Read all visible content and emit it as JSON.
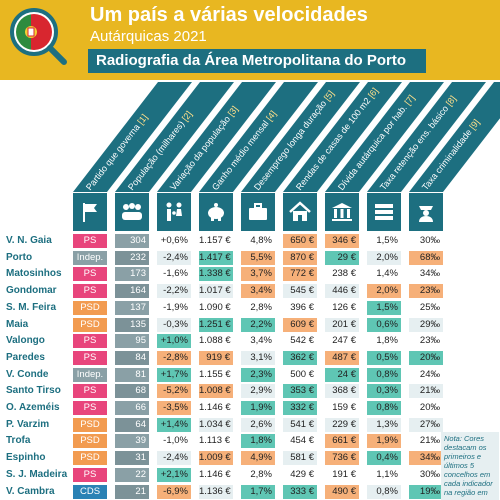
{
  "header": {
    "title": "Um país a várias velocidades",
    "subtitle": "Autárquicas 2021",
    "banner": "Radiografia da Área Metropolitana do Porto"
  },
  "columns": [
    {
      "label": "Partido que governa",
      "ref": "[1]",
      "icon": "flag-icon"
    },
    {
      "label": "População (milhares)",
      "ref": "[2]",
      "icon": "people-icon"
    },
    {
      "label": "Variação da população",
      "ref": "[3]",
      "icon": "family-icon"
    },
    {
      "label": "Ganho médio mensal",
      "ref": "[4]",
      "icon": "piggy-bank-icon"
    },
    {
      "label": "Desemprego longa duração",
      "ref": "[5]",
      "icon": "briefcase-icon"
    },
    {
      "label": "Rendas de casas de 100 m2",
      "ref": "[6]",
      "icon": "house-icon"
    },
    {
      "label": "Dívida autárquica por hab.",
      "ref": "[7]",
      "icon": "bank-icon"
    },
    {
      "label": "Taxa retenção ens. básico",
      "ref": "[8]",
      "icon": "books-icon"
    },
    {
      "label": "Taxa criminalidade",
      "ref": "[9]",
      "icon": "police-icon"
    }
  ],
  "rows": [
    {
      "name": "V. N. Gaia",
      "party": "PS",
      "pop": "304",
      "var": "+0,6%",
      "gain": "1.157 €",
      "unemp": "4,8%",
      "rent": "650 €",
      "debt": "346 €",
      "ret": "1,5%",
      "crime": "30‰",
      "hl": [
        "n",
        "n",
        "n",
        "o",
        "o",
        "n",
        "n",
        "o"
      ]
    },
    {
      "name": "Porto",
      "party": "Indep.",
      "pop": "232",
      "var": "-2,4%",
      "gain": "1.417 €",
      "unemp": "5,5%",
      "rent": "870 €",
      "debt": "29 €",
      "ret": "2,0%",
      "crime": "68‰",
      "hl": [
        "n",
        "t",
        "o",
        "o",
        "t",
        "n",
        "o",
        "o"
      ]
    },
    {
      "name": "Matosinhos",
      "party": "PS",
      "pop": "173",
      "var": "-1,6%",
      "gain": "1.338 €",
      "unemp": "3,7%",
      "rent": "772 €",
      "debt": "238 €",
      "ret": "1,4%",
      "crime": "34‰",
      "hl": [
        "n",
        "t",
        "o",
        "o",
        "n",
        "n",
        "n",
        "o"
      ]
    },
    {
      "name": "Gondomar",
      "party": "PS",
      "pop": "164",
      "var": "-2,2%",
      "gain": "1.017 €",
      "unemp": "3,4%",
      "rent": "545 €",
      "debt": "446 €",
      "ret": "2,0%",
      "crime": "23‰",
      "hl": [
        "n",
        "n",
        "o",
        "n",
        "n",
        "o",
        "o",
        "n"
      ]
    },
    {
      "name": "S. M. Feira",
      "party": "PSD",
      "pop": "137",
      "var": "-1,9%",
      "gain": "1.090 €",
      "unemp": "2,8%",
      "rent": "396 €",
      "debt": "126 €",
      "ret": "1,5%",
      "crime": "25‰",
      "hl": [
        "n",
        "n",
        "n",
        "n",
        "n",
        "t",
        "n",
        "n"
      ]
    },
    {
      "name": "Maia",
      "party": "PSD",
      "pop": "135",
      "var": "-0,3%",
      "gain": "1.251 €",
      "unemp": "2,2%",
      "rent": "609 €",
      "debt": "201 €",
      "ret": "0,6%",
      "crime": "29‰",
      "hl": [
        "n",
        "t",
        "t",
        "o",
        "n",
        "t",
        "n",
        "n"
      ]
    },
    {
      "name": "Valongo",
      "party": "PS",
      "pop": "95",
      "var": "+1,0%",
      "gain": "1.088 €",
      "unemp": "3,4%",
      "rent": "542 €",
      "debt": "247 €",
      "ret": "1,8%",
      "crime": "23‰",
      "hl": [
        "t",
        "n",
        "n",
        "n",
        "n",
        "n",
        "n",
        "n"
      ]
    },
    {
      "name": "Paredes",
      "party": "PS",
      "pop": "84",
      "var": "-2,8%",
      "gain": "919 €",
      "unemp": "3,1%",
      "rent": "362 €",
      "debt": "487 €",
      "ret": "0,5%",
      "crime": "20‰",
      "hl": [
        "o",
        "o",
        "n",
        "t",
        "o",
        "t",
        "t",
        "n"
      ]
    },
    {
      "name": "V. Conde",
      "party": "Indep.",
      "pop": "81",
      "var": "+1,7%",
      "gain": "1.155 €",
      "unemp": "2,3%",
      "rent": "500 €",
      "debt": "24 €",
      "ret": "0,8%",
      "crime": "24‰",
      "hl": [
        "t",
        "n",
        "t",
        "n",
        "t",
        "t",
        "n",
        "n"
      ]
    },
    {
      "name": "Santo Tirso",
      "party": "PS",
      "pop": "68",
      "var": "-5,2%",
      "gain": "1.008 €",
      "unemp": "2,9%",
      "rent": "353 €",
      "debt": "368 €",
      "ret": "0,3%",
      "crime": "21‰",
      "hl": [
        "o",
        "o",
        "n",
        "t",
        "n",
        "t",
        "n",
        "n"
      ]
    },
    {
      "name": "O. Azeméis",
      "party": "PS",
      "pop": "66",
      "var": "-3,5%",
      "gain": "1.146 €",
      "unemp": "1,9%",
      "rent": "332 €",
      "debt": "159 €",
      "ret": "0,8%",
      "crime": "20‰",
      "hl": [
        "o",
        "n",
        "t",
        "t",
        "n",
        "t",
        "n",
        "n"
      ]
    },
    {
      "name": "P. Varzim",
      "party": "PSD",
      "pop": "64",
      "var": "+1,4%",
      "gain": "1.034 €",
      "unemp": "2,6%",
      "rent": "541 €",
      "debt": "229 €",
      "ret": "1,3%",
      "crime": "27‰",
      "hl": [
        "t",
        "n",
        "n",
        "n",
        "n",
        "n",
        "n",
        "n"
      ]
    },
    {
      "name": "Trofa",
      "party": "PSD",
      "pop": "39",
      "var": "-1,0%",
      "gain": "1.113 €",
      "unemp": "1,8%",
      "rent": "454 €",
      "debt": "661 €",
      "ret": "1,9%",
      "crime": "21‰",
      "hl": [
        "n",
        "n",
        "t",
        "n",
        "o",
        "o",
        "n",
        "n"
      ]
    },
    {
      "name": "Espinho",
      "party": "PSD",
      "pop": "31",
      "var": "-2,4%",
      "gain": "1.009 €",
      "unemp": "4,9%",
      "rent": "581 €",
      "debt": "736 €",
      "ret": "0,4%",
      "crime": "34‰",
      "hl": [
        "n",
        "o",
        "o",
        "n",
        "o",
        "t",
        "o",
        "n"
      ]
    },
    {
      "name": "S. J. Madeira",
      "party": "PS",
      "pop": "22",
      "var": "+2,1%",
      "gain": "1.146 €",
      "unemp": "2,8%",
      "rent": "429 €",
      "debt": "191 €",
      "ret": "1,1%",
      "crime": "30‰",
      "hl": [
        "t",
        "n",
        "n",
        "n",
        "n",
        "n",
        "n",
        "o"
      ]
    },
    {
      "name": "V. Cambra",
      "party": "CDS",
      "pop": "21",
      "var": "-6,9%",
      "gain": "1.136 €",
      "unemp": "1,7%",
      "rent": "333 €",
      "debt": "490 €",
      "ret": "0,8%",
      "crime": "19‰",
      "hl": [
        "o",
        "n",
        "t",
        "t",
        "o",
        "n",
        "t",
        "n"
      ]
    }
  ],
  "note": "Nota: Cores destacam os primeiros e últimos 5 concelhos em cada indicador na região em"
}
